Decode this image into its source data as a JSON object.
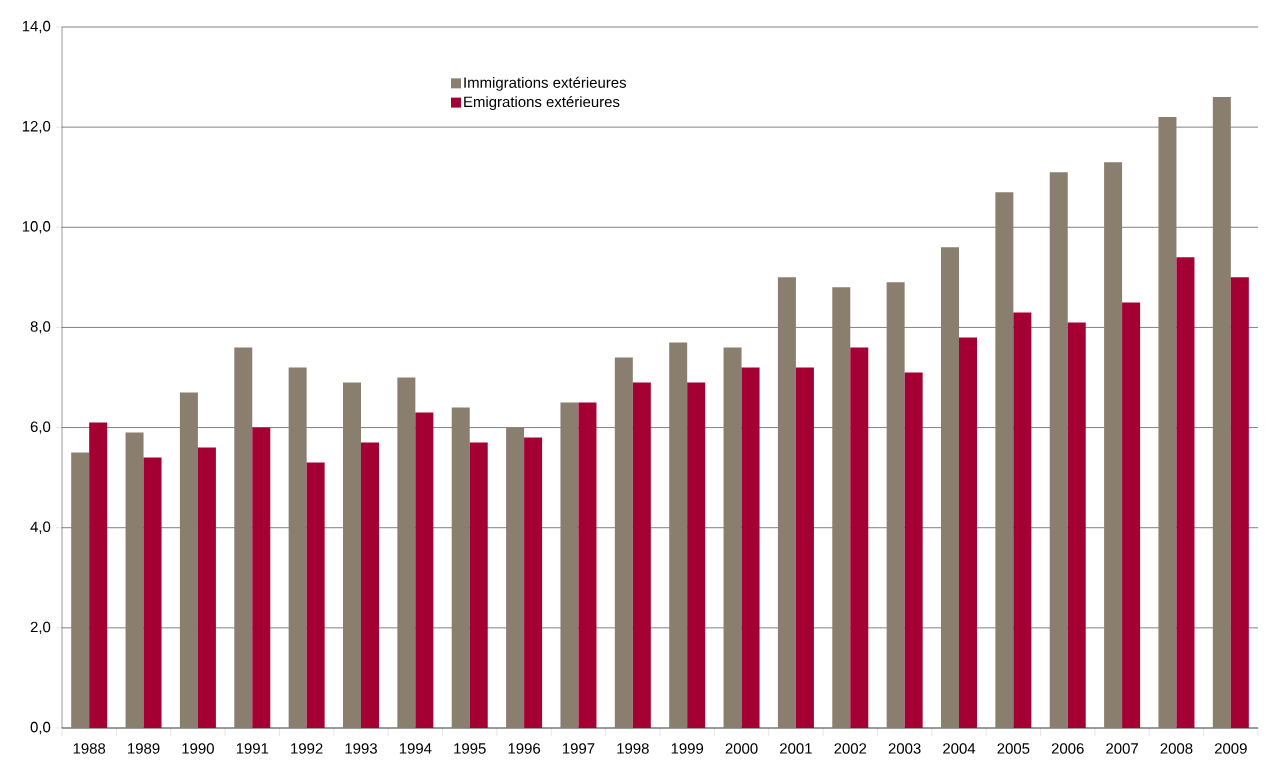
{
  "chart_data": {
    "type": "bar",
    "categories": [
      "1988",
      "1989",
      "1990",
      "1991",
      "1992",
      "1993",
      "1994",
      "1995",
      "1996",
      "1997",
      "1998",
      "1999",
      "2000",
      "2001",
      "2002",
      "2003",
      "2004",
      "2005",
      "2006",
      "2007",
      "2008",
      "2009"
    ],
    "series": [
      {
        "name": "Immigrations extérieures",
        "color": "#8a7f6f",
        "values": [
          5.5,
          5.9,
          6.7,
          7.6,
          7.2,
          6.9,
          7.0,
          6.4,
          6.0,
          6.5,
          7.4,
          7.7,
          7.6,
          9.0,
          8.8,
          8.9,
          9.6,
          10.7,
          11.1,
          11.3,
          12.2,
          12.6
        ]
      },
      {
        "name": "Emigrations extérieures",
        "color": "#a50034",
        "values": [
          6.1,
          5.4,
          5.6,
          6.0,
          5.3,
          5.7,
          6.3,
          5.7,
          5.8,
          6.5,
          6.9,
          6.9,
          7.2,
          7.2,
          7.6,
          7.1,
          7.8,
          8.3,
          8.1,
          8.5,
          9.4,
          9.0
        ]
      }
    ],
    "ylim": [
      0,
      14
    ],
    "yticks": [
      {
        "value": 0,
        "label": "0,0"
      },
      {
        "value": 2,
        "label": "2,0"
      },
      {
        "value": 4,
        "label": "4,0"
      },
      {
        "value": 6,
        "label": "6,0"
      },
      {
        "value": 8,
        "label": "8,0"
      },
      {
        "value": 10,
        "label": "10,0"
      },
      {
        "value": 12,
        "label": "12,0"
      },
      {
        "value": 14,
        "label": "14,0"
      }
    ],
    "grid": "y",
    "legend": "top"
  }
}
